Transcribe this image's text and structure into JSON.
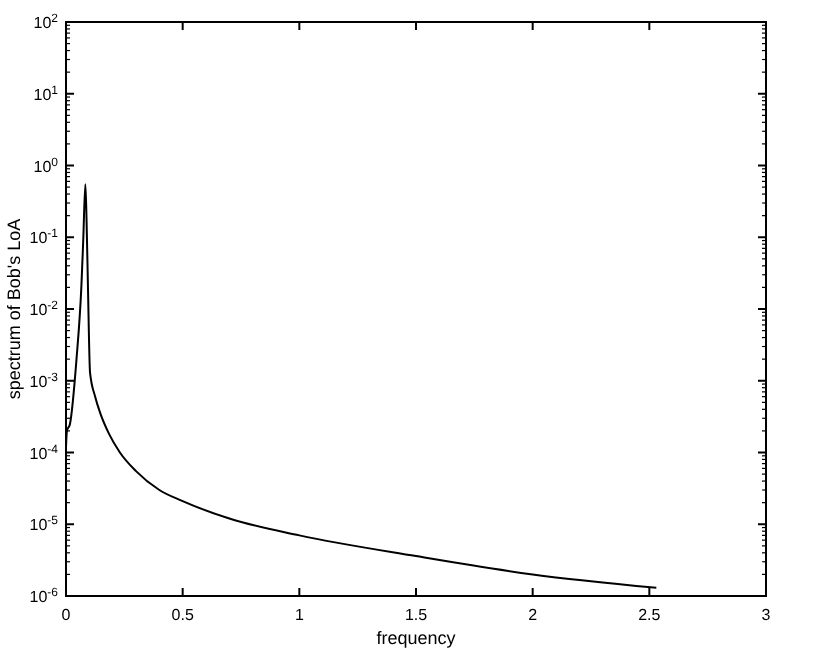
{
  "chart_data": {
    "type": "line",
    "xlabel": "frequency",
    "ylabel": "spectrum of Bob's LoA",
    "log": "y",
    "grid": false,
    "marker": "none",
    "line_style": "solid",
    "xlim": [
      0,
      3
    ],
    "xticks": [
      0,
      0.5,
      1,
      1.5,
      2,
      2.5,
      3
    ],
    "ylim": [
      1e-06,
      100
    ],
    "yticks": [
      {
        "value": 1e-06,
        "label": "10$^{-6}$"
      },
      {
        "value": 1e-05,
        "label": "10$^{-5}$"
      },
      {
        "value": 0.0001,
        "label": "10$^{-4}$"
      },
      {
        "value": 0.001,
        "label": "10$^{-3}$"
      },
      {
        "value": 0.01,
        "label": "10$^{-2}$"
      },
      {
        "value": 0.1,
        "label": "10$^{-1}$"
      },
      {
        "value": 1,
        "label": "10$^{0}$"
      },
      {
        "value": 10,
        "label": "10$^{1}$"
      },
      {
        "value": 100,
        "label": "10$^{2}$"
      }
    ],
    "series": [
      {
        "color": "#000000",
        "x": [
          0,
          0.004,
          0.017,
          0.045,
          0.066,
          0.074,
          0.083,
          0.088,
          0.094,
          0.103,
          0.125,
          0.146,
          0.185,
          0.231,
          0.3,
          0.4,
          0.5,
          0.7,
          1,
          1.5,
          2,
          2.53
        ],
        "values": [
          0.00012,
          0.0002,
          0.00025,
          0.002,
          0.021,
          0.093,
          0.55,
          0.18,
          0.021,
          0.0013,
          0.0006,
          0.00036,
          0.00018,
          0.0001,
          5.5e-05,
          3e-05,
          2.1e-05,
          1.2e-05,
          7e-06,
          3.6e-06,
          2e-06,
          1.3e-06
        ]
      }
    ]
  }
}
